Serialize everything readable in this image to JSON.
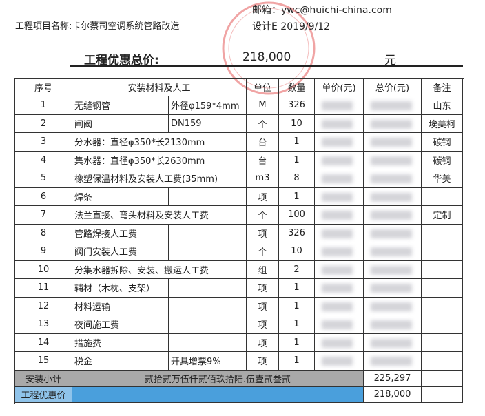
{
  "header": {
    "project": "工程项目名称:卡尔蔡司空调系统管路改造",
    "email": "邮箱：ywc@huichi-china.com",
    "design_date": "设计E 2019/9/12",
    "total_label": "工程优惠总价:",
    "total_value": "218,000",
    "total_unit": "元"
  },
  "table": {
    "columns": [
      "序号",
      "安装材料及人工",
      "单位",
      "数量",
      "单价(元)",
      "总价(元)",
      "备注"
    ],
    "rows": [
      {
        "no": 1,
        "name": "无缝钢管",
        "spec": "外径φ159*4mm",
        "unit": "M",
        "qty": 326,
        "remark": "山东"
      },
      {
        "no": 2,
        "name": "闸阀",
        "spec": "DN159",
        "unit": "个",
        "qty": 10,
        "remark": "埃美柯"
      },
      {
        "no": 3,
        "name": "分水器：直径φ350*长2130mm",
        "unit": "台",
        "qty": 1,
        "remark": "碳钢"
      },
      {
        "no": 4,
        "name": "集水器：直径φ350*长2630mm",
        "unit": "台",
        "qty": 1,
        "remark": "碳钢"
      },
      {
        "no": 5,
        "name": "橡塑保温材料及安装人工费(35mm)",
        "unit": "m3",
        "qty": 8,
        "remark": "华美"
      },
      {
        "no": 6,
        "name": "焊条",
        "unit": "项",
        "qty": 1
      },
      {
        "no": 7,
        "name": "法兰直接、弯头材料及安装人工费",
        "unit": "个",
        "qty": 100,
        "remark": "定制"
      },
      {
        "no": 8,
        "name": "管路焊接人工费",
        "unit": "项",
        "qty": 326
      },
      {
        "no": 9,
        "name": "阀门安装人工费",
        "unit": "个",
        "qty": 10
      },
      {
        "no": 10,
        "name": "分集水器拆除、安装、搬运人工费",
        "unit": "组",
        "qty": 2
      },
      {
        "no": 11,
        "name": "辅材（木枕、支架）",
        "unit": "项",
        "qty": 1
      },
      {
        "no": 12,
        "name": "材料运输",
        "unit": "项",
        "qty": 1
      },
      {
        "no": 13,
        "name": "夜间施工费",
        "unit": "项",
        "qty": 1
      },
      {
        "no": 14,
        "name": "措施费",
        "unit": "项",
        "qty": 1
      },
      {
        "no": 15,
        "name": "税金",
        "spec": "开具增票9%",
        "unit": "项",
        "qty": 1
      }
    ],
    "subtotal": {
      "label": "安装小计",
      "words": "贰拾贰万伍仟贰佰玖拾陆.伍壹贰叁贰",
      "total": "225,297"
    },
    "discount": {
      "label": "工程优惠价",
      "total": "218,000"
    }
  }
}
